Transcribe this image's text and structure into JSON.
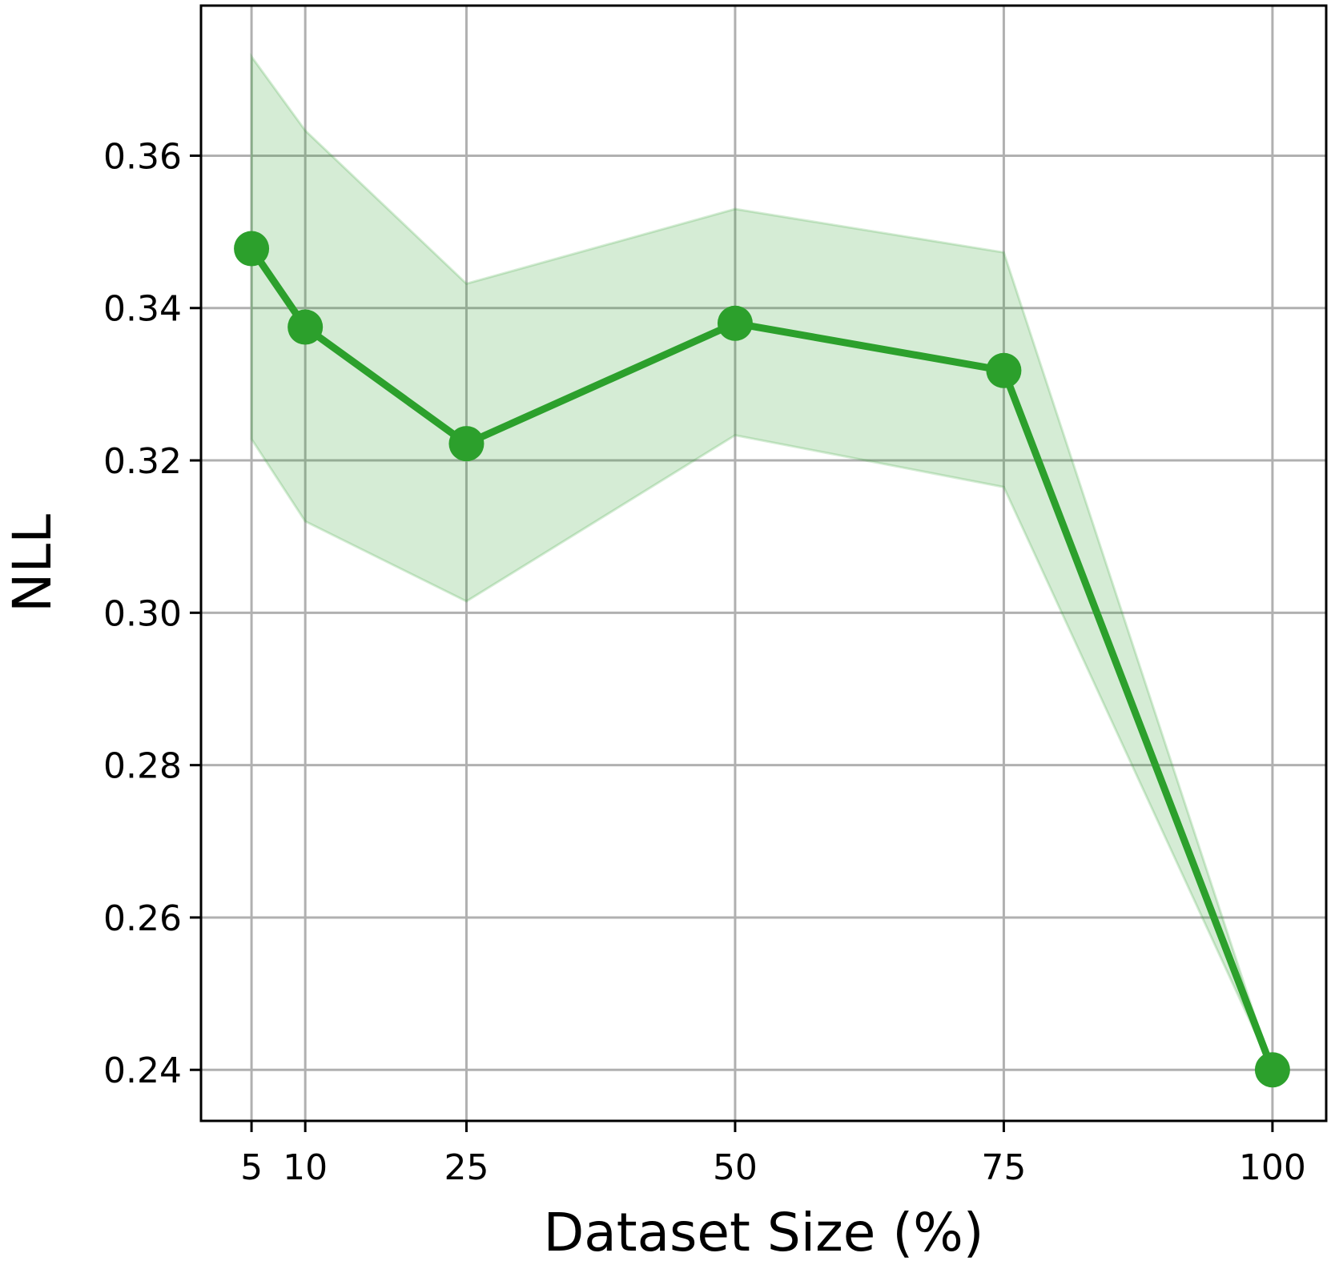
{
  "chart_data": {
    "type": "line",
    "title": "",
    "xlabel": "Dataset Size (%)",
    "ylabel": "NLL",
    "x": [
      5,
      10,
      25,
      50,
      75,
      100
    ],
    "xticks": [
      "5",
      "10",
      "25",
      "50",
      "75",
      "100"
    ],
    "yticks": [
      "0.24",
      "0.26",
      "0.28",
      "0.30",
      "0.32",
      "0.34",
      "0.36"
    ],
    "ytick_values": [
      0.24,
      0.26,
      0.28,
      0.3,
      0.32,
      0.34,
      0.36
    ],
    "xlim": [
      0.3,
      105
    ],
    "ylim": [
      0.2333,
      0.3797
    ],
    "grid": true,
    "series": [
      {
        "values": [
          0.3478,
          0.3375,
          0.3222,
          0.338,
          0.3318,
          0.24
        ],
        "lower": [
          0.3228,
          0.312,
          0.3015,
          0.3233,
          0.3165,
          0.24
        ],
        "upper": [
          0.373,
          0.3633,
          0.3432,
          0.353,
          0.3473,
          0.24
        ],
        "color": "#2ca02c",
        "band_color": "#2ca02c"
      }
    ]
  }
}
